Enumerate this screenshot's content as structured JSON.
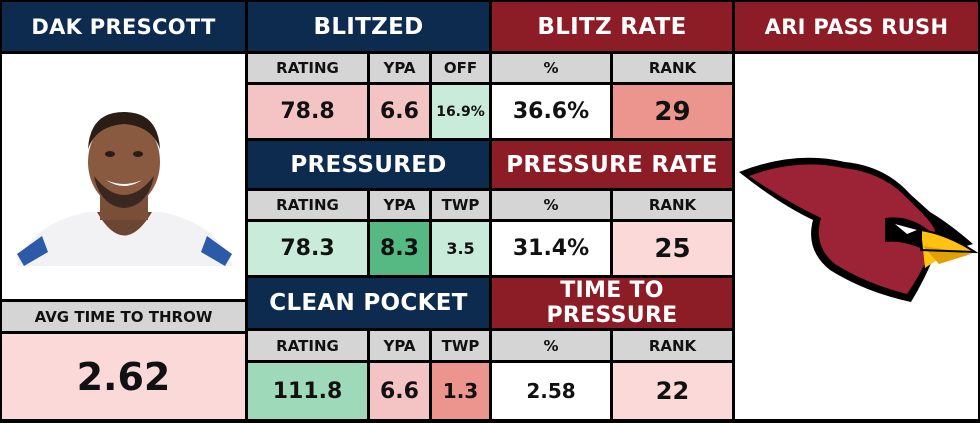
{
  "player": {
    "name": "DAK PRESCOTT",
    "avg_time_label": "AVG TIME TO THROW",
    "avg_time_value": "2.62"
  },
  "opponent": {
    "title": "ARI PASS RUSH",
    "logo_icon": "cardinals-logo"
  },
  "sections": [
    {
      "left_title": "BLITZED",
      "right_title": "BLITZ RATE",
      "left_headers": [
        "RATING",
        "YPA",
        "OFF"
      ],
      "left_values": [
        "78.8",
        "6.6",
        "16.9%"
      ],
      "right_headers": [
        "%",
        "RANK"
      ],
      "right_values": [
        "36.6%",
        "29"
      ]
    },
    {
      "left_title": "PRESSURED",
      "right_title": "PRESSURE RATE",
      "left_headers": [
        "RATING",
        "YPA",
        "TWP"
      ],
      "left_values": [
        "78.3",
        "8.3",
        "3.5"
      ],
      "right_headers": [
        "%",
        "RANK"
      ],
      "right_values": [
        "31.4%",
        "25"
      ]
    },
    {
      "left_title": "CLEAN POCKET",
      "right_title": "TIME TO PRESSURE",
      "left_headers": [
        "RATING",
        "YPA",
        "TWP"
      ],
      "left_values": [
        "111.8",
        "6.6",
        "1.3"
      ],
      "right_headers": [
        "%",
        "RANK"
      ],
      "right_values": [
        "2.58",
        "22"
      ]
    }
  ],
  "colors": {
    "navy": "#0d2a4f",
    "maroon": "#8c1d26",
    "light_red": "#f4c4c4",
    "mid_red": "#ec958e",
    "pale_red": "#fad9d8",
    "light_green": "#c8ecd9",
    "mid_green": "#9ed9b9",
    "dark_green": "#56b882",
    "header_gray": "#d5d5d5"
  }
}
